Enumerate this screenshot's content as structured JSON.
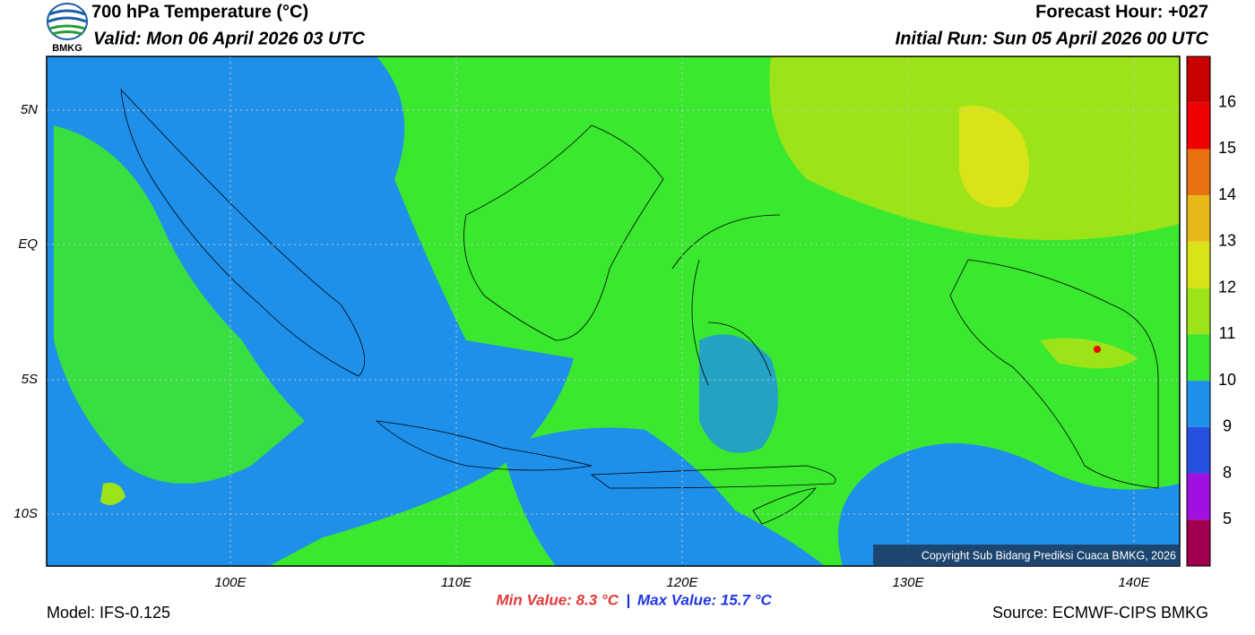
{
  "header": {
    "title": "700 hPa Temperature (°C)",
    "valid": "Valid: Mon 06 April 2026 03 UTC",
    "forecast_hour": "Forecast Hour: +027",
    "initial_run": "Initial Run: Sun 05 April 2026 00 UTC",
    "logo_text": "BMKG"
  },
  "map": {
    "lat_labels": [
      "5N",
      "EQ",
      "5S",
      "10S"
    ],
    "lon_labels": [
      "100E",
      "110E",
      "120E",
      "130E",
      "140E"
    ],
    "copyright": "Copyright Sub Bidang Prediksi Cuaca BMKG, 2026"
  },
  "colorbar": {
    "colors": [
      "#c80000",
      "#f00000",
      "#e87010",
      "#e8b818",
      "#d8e418",
      "#9ce418",
      "#3ae830",
      "#1e90ea",
      "#2850e0",
      "#a010e0",
      "#a0004e"
    ],
    "labels": [
      "16",
      "15",
      "14",
      "13",
      "12",
      "11",
      "10",
      "9",
      "8",
      "5"
    ]
  },
  "footer": {
    "model": "Model: IFS-0.125",
    "min_value": "Min Value: 8.3 °C",
    "separator": "|",
    "max_value": "Max Value: 15.7 °C",
    "source": "Source: ECMWF-CIPS BMKG"
  }
}
